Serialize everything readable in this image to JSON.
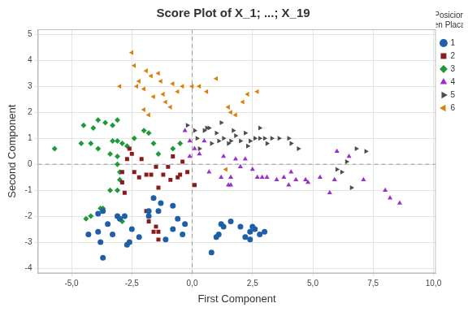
{
  "chart_data": {
    "type": "scatter",
    "title": "Score Plot of X_1; ...; X_19",
    "x_label": "First Component",
    "y_label": "Second Component",
    "legend_title": "Posicion en Placa",
    "legend": "right",
    "grid": true,
    "xlim": [
      -6.4,
      10.1
    ],
    "ylim": [
      -4.2,
      5.2
    ],
    "xticks": [
      {
        "value": -5,
        "label": "-5,0"
      },
      {
        "value": -2.5,
        "label": "-2,5"
      },
      {
        "value": 0,
        "label": "0,0"
      },
      {
        "value": 2.5,
        "label": "2,5"
      },
      {
        "value": 5,
        "label": "5,0"
      },
      {
        "value": 7.5,
        "label": "7,5"
      },
      {
        "value": 10,
        "label": "10,0"
      }
    ],
    "yticks": [
      -4,
      -3,
      -2,
      -1,
      0,
      1,
      2,
      3,
      4,
      5
    ],
    "reference_lines": [
      {
        "axis": "x",
        "value": 0
      },
      {
        "axis": "y",
        "value": 0
      }
    ],
    "series": [
      {
        "name": "1",
        "color": "#1f5fa8",
        "marker": "circle",
        "x": [
          -3.7,
          -3.9,
          -3.5,
          -4.3,
          -3.9,
          -3.8,
          -3.7,
          -3.1,
          -2.8,
          -3.0,
          -3.3,
          -2.7,
          -2.6,
          -2.2,
          -2.5,
          -1.8,
          -1.6,
          -1.3,
          -1.4,
          -0.8,
          -0.6,
          -0.3,
          -0.8,
          -0.4,
          -1.1,
          0.8,
          1.0,
          1.1,
          1.3,
          1.6,
          2.0,
          2.2,
          2.4,
          2.4,
          2.6,
          2.8,
          3.0,
          2.5,
          1.2,
          -1.8
        ],
        "y": [
          -1.8,
          -1.9,
          -2.3,
          -2.7,
          -2.6,
          -3.0,
          -3.6,
          -2.0,
          -2.0,
          -2.1,
          -2.7,
          -3.1,
          -3.0,
          -2.8,
          -2.5,
          -1.8,
          -1.3,
          -1.5,
          -1.8,
          -1.6,
          -2.1,
          -2.3,
          -2.5,
          -2.7,
          -2.9,
          -3.4,
          -2.8,
          -2.7,
          -2.4,
          -2.2,
          -2.4,
          -2.8,
          -2.6,
          -2.9,
          -2.5,
          -2.7,
          -2.6,
          -2.4,
          -2.3,
          -2.0
        ]
      },
      {
        "name": "2",
        "color": "#8b1a1a",
        "marker": "square",
        "x": [
          -2.9,
          -2.9,
          -2.8,
          -2.7,
          -2.6,
          -2.5,
          -2.4,
          -2.2,
          -2.1,
          -1.9,
          -1.7,
          -1.5,
          -1.4,
          -1.2,
          -1.0,
          -0.9,
          -0.6,
          -0.5,
          -0.4,
          -0.2,
          0.1,
          -1.8,
          -1.5,
          -1.4,
          -1.4,
          -1.6,
          -1.9,
          -0.8
        ],
        "y": [
          -0.3,
          -0.7,
          -1.1,
          0.2,
          0.6,
          0.4,
          -0.3,
          -0.5,
          0.2,
          -0.4,
          -0.4,
          -0.1,
          -0.9,
          -0.4,
          -0.1,
          -0.6,
          -0.5,
          -0.4,
          0.1,
          -0.3,
          -0.8,
          -2.2,
          -2.4,
          -2.6,
          -2.9,
          -2.6,
          -1.8,
          0.3
        ]
      },
      {
        "name": "3",
        "color": "#1e9a3c",
        "marker": "diamond",
        "x": [
          -5.7,
          -4.6,
          -4.5,
          -4.1,
          -3.9,
          -3.6,
          -3.1,
          -3.3,
          -4.2,
          -3.9,
          -3.4,
          -3.3,
          -3.1,
          -2.9,
          -2.7,
          -2.4,
          -2.0,
          -1.8,
          -1.6,
          -1.4,
          -3.1,
          -3.1,
          -3.0,
          -3.0,
          -3.1,
          -3.4,
          -3.7,
          -3.8,
          -4.4,
          -4.2,
          -3.0,
          -2.9,
          -0.8,
          -0.5,
          -2.8
        ],
        "y": [
          0.6,
          0.8,
          1.5,
          1.4,
          1.7,
          1.6,
          1.7,
          1.5,
          0.8,
          0.6,
          0.4,
          0.9,
          0.9,
          0.8,
          0.7,
          1.0,
          1.3,
          1.2,
          0.8,
          0.4,
          0.3,
          0.0,
          -0.3,
          -0.6,
          -1.0,
          -1.0,
          -1.7,
          -1.7,
          -2.1,
          -2.0,
          -2.1,
          -2.2,
          0.6,
          0.8,
          -2.0
        ]
      },
      {
        "name": "4",
        "color": "#9b30c8",
        "marker": "triangle",
        "x": [
          -0.3,
          -0.1,
          0.3,
          0.5,
          0.7,
          1.2,
          1.3,
          1.5,
          1.6,
          1.8,
          2.0,
          2.2,
          2.5,
          2.7,
          2.9,
          3.1,
          3.5,
          3.8,
          4.0,
          4.1,
          4.3,
          4.7,
          4.8,
          5.3,
          5.9,
          6.0,
          5.7,
          6.5,
          7.1,
          8.0,
          8.2,
          8.6,
          -0.1,
          0.1,
          1.6
        ],
        "y": [
          1.3,
          0.9,
          0.4,
          0.9,
          -0.3,
          -0.5,
          0.3,
          -0.8,
          -0.8,
          0.2,
          -0.1,
          0.2,
          -0.2,
          -0.5,
          -0.5,
          -0.5,
          -0.6,
          -0.5,
          -0.8,
          -0.3,
          -0.6,
          -0.6,
          -0.7,
          -0.5,
          -0.6,
          0.5,
          -1.1,
          0.3,
          -0.6,
          -1.0,
          -1.3,
          -1.5,
          0.3,
          0.6,
          -0.5
        ]
      },
      {
        "name": "5",
        "color": "#4d4d4d",
        "marker": "triangle-right",
        "x": [
          -0.2,
          0.1,
          0.2,
          0.3,
          0.5,
          0.6,
          0.7,
          0.8,
          1.0,
          1.1,
          1.3,
          1.5,
          1.6,
          1.7,
          1.8,
          2.0,
          2.2,
          2.3,
          2.4,
          2.6,
          2.8,
          2.8,
          3.0,
          3.1,
          3.3,
          3.6,
          4.0,
          4.1,
          4.4,
          6.0,
          6.4,
          6.6,
          6.8,
          7.2,
          6.2,
          1.2
        ],
        "y": [
          1.5,
          1.3,
          1.0,
          0.6,
          1.3,
          1.4,
          1.4,
          0.8,
          1.2,
          0.9,
          1.0,
          0.8,
          0.9,
          1.3,
          1.1,
          0.9,
          1.2,
          0.7,
          0.9,
          1.0,
          1.0,
          1.4,
          1.0,
          0.8,
          1.0,
          1.0,
          1.0,
          0.8,
          0.6,
          -0.2,
          0.1,
          -0.9,
          0.6,
          0.5,
          -0.3,
          1.6
        ]
      },
      {
        "name": "6",
        "color": "#d9820a",
        "marker": "triangle-left",
        "x": [
          -3.0,
          -2.5,
          -2.4,
          -2.2,
          -2.0,
          -1.9,
          -1.7,
          -1.6,
          -1.4,
          -1.3,
          -1.2,
          -1.1,
          -0.9,
          -0.8,
          -0.6,
          -0.4,
          0.0,
          0.3,
          0.6,
          1.0,
          1.5,
          1.6,
          1.8,
          2.3,
          2.7,
          2.1,
          1.4,
          -1.8,
          -2.0,
          -2.3
        ],
        "y": [
          3.0,
          4.3,
          3.8,
          3.2,
          2.9,
          3.6,
          3.4,
          2.6,
          3.5,
          3.2,
          2.7,
          2.4,
          2.2,
          3.1,
          2.8,
          3.0,
          3.0,
          3.0,
          2.8,
          3.3,
          2.2,
          2.0,
          1.9,
          2.7,
          2.8,
          2.4,
          -0.2,
          1.9,
          2.1,
          3.0
        ]
      }
    ]
  }
}
